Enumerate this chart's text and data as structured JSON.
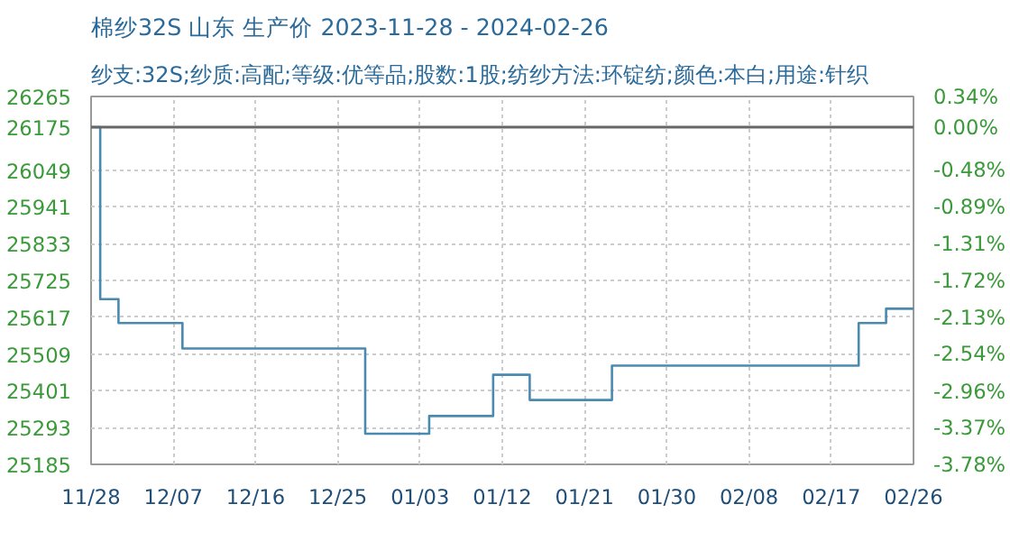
{
  "chart_data": {
    "type": "step",
    "title": "棉纱32S 山东 生产价 2023-11-28 - 2024-02-26",
    "subtitle": "纱支:32S;纱质:高配;等级:优等品;股数:1股;纺纱方法:环锭纺;颜色:本白;用途:针织",
    "x": [
      "2023-11-28",
      "2023-11-29",
      "2023-11-30",
      "2023-12-01",
      "2023-12-07",
      "2023-12-08",
      "2023-12-27",
      "2023-12-28",
      "2024-01-03",
      "2024-01-04",
      "2024-01-10",
      "2024-01-11",
      "2024-01-14",
      "2024-01-15",
      "2024-01-23",
      "2024-01-24",
      "2024-02-19",
      "2024-02-20",
      "2024-02-22",
      "2024-02-23",
      "2024-02-26"
    ],
    "series": [
      {
        "color": "#4a8ab0",
        "values": [
          26175,
          25670,
          25670,
          25600,
          25600,
          25525,
          25525,
          25275,
          25275,
          25327,
          25327,
          25448,
          25448,
          25374,
          25374,
          25475,
          25475,
          25600,
          25600,
          25642,
          25642
        ]
      }
    ],
    "xlim": [
      "2023-11-28",
      "2024-02-26"
    ],
    "xticks": [
      {
        "value": "2023-11-28",
        "label": "11/28"
      },
      {
        "value": "2023-12-07",
        "label": "12/07"
      },
      {
        "value": "2023-12-16",
        "label": "12/16"
      },
      {
        "value": "2023-12-25",
        "label": "12/25"
      },
      {
        "value": "2024-01-03",
        "label": "01/03"
      },
      {
        "value": "2024-01-12",
        "label": "01/12"
      },
      {
        "value": "2024-01-21",
        "label": "01/21"
      },
      {
        "value": "2024-01-30",
        "label": "01/30"
      },
      {
        "value": "2024-02-08",
        "label": "02/08"
      },
      {
        "value": "2024-02-17",
        "label": "02/17"
      },
      {
        "value": "2024-02-26",
        "label": "02/26"
      }
    ],
    "ylim": [
      25185,
      26265
    ],
    "yticks": [
      25185,
      25293,
      25401,
      25509,
      25617,
      25725,
      25833,
      25941,
      26049,
      26175,
      26265
    ],
    "y2lim": [
      -3.78,
      0.34
    ],
    "y2ticks": [
      {
        "value": -3.78,
        "label": "-3.78%"
      },
      {
        "value": -3.37,
        "label": "-3.37%"
      },
      {
        "value": -2.96,
        "label": "-2.96%"
      },
      {
        "value": -2.54,
        "label": "-2.54%"
      },
      {
        "value": -2.13,
        "label": "-2.13%"
      },
      {
        "value": -1.72,
        "label": "-1.72%"
      },
      {
        "value": -1.31,
        "label": "-1.31%"
      },
      {
        "value": -0.89,
        "label": "-0.89%"
      },
      {
        "value": -0.48,
        "label": "-0.48%"
      },
      {
        "value": 0,
        "label": "0.00%"
      },
      {
        "value": 0.34,
        "label": "0.34%"
      }
    ],
    "ref_lines": [
      {
        "axis": "y",
        "value": 26175,
        "color": "#666666"
      }
    ],
    "grid": true,
    "marker": "none",
    "line_style": "solid"
  }
}
